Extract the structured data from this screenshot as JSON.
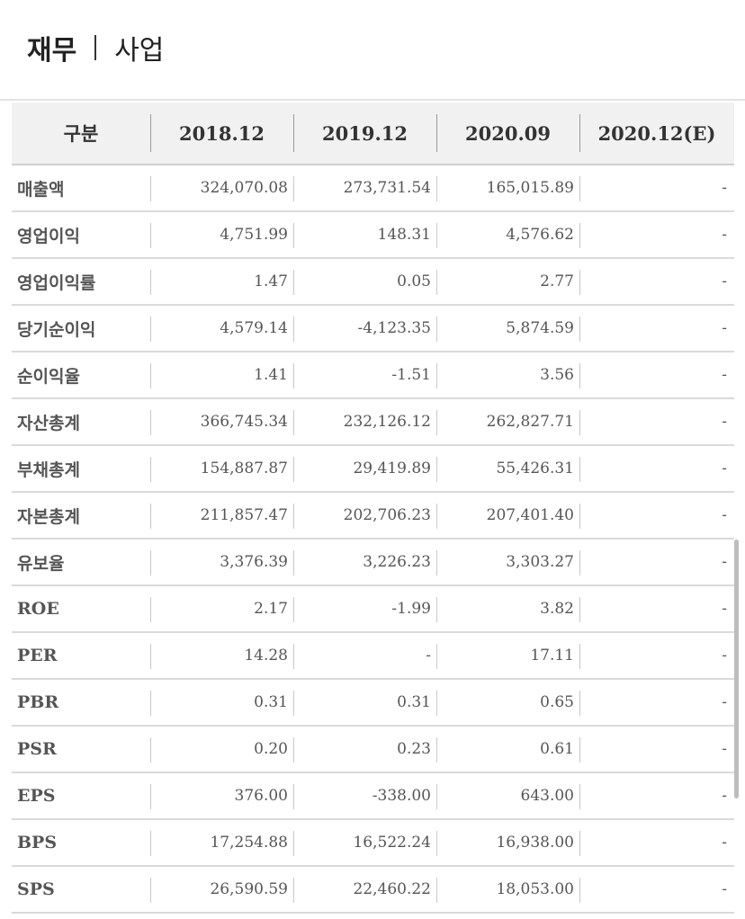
{
  "tabs": {
    "active_label": "재무",
    "inactive_label": "사업"
  },
  "table": {
    "headers": [
      "구분",
      "2018.12",
      "2019.12",
      "2020.09",
      "2020.12(E)"
    ],
    "rows": [
      {
        "label": "매출액",
        "values": [
          "324,070.08",
          "273,731.54",
          "165,015.89",
          "-"
        ]
      },
      {
        "label": "영업이익",
        "values": [
          "4,751.99",
          "148.31",
          "4,576.62",
          "-"
        ]
      },
      {
        "label": "영업이익률",
        "values": [
          "1.47",
          "0.05",
          "2.77",
          "-"
        ]
      },
      {
        "label": "당기순이익",
        "values": [
          "4,579.14",
          "-4,123.35",
          "5,874.59",
          "-"
        ]
      },
      {
        "label": "순이익율",
        "values": [
          "1.41",
          "-1.51",
          "3.56",
          "-"
        ]
      },
      {
        "label": "자산총계",
        "values": [
          "366,745.34",
          "232,126.12",
          "262,827.71",
          "-"
        ]
      },
      {
        "label": "부채총계",
        "values": [
          "154,887.87",
          "29,419.89",
          "55,426.31",
          "-"
        ]
      },
      {
        "label": "자본총계",
        "values": [
          "211,857.47",
          "202,706.23",
          "207,401.40",
          "-"
        ]
      },
      {
        "label": "유보율",
        "values": [
          "3,376.39",
          "3,226.23",
          "3,303.27",
          "-"
        ]
      },
      {
        "label": "ROE",
        "values": [
          "2.17",
          "-1.99",
          "3.82",
          "-"
        ]
      },
      {
        "label": "PER",
        "values": [
          "14.28",
          "-",
          "17.11",
          "-"
        ]
      },
      {
        "label": "PBR",
        "values": [
          "0.31",
          "0.31",
          "0.65",
          "-"
        ]
      },
      {
        "label": "PSR",
        "values": [
          "0.20",
          "0.23",
          "0.61",
          "-"
        ]
      },
      {
        "label": "EPS",
        "values": [
          "376.00",
          "-338.00",
          "643.00",
          "-"
        ]
      },
      {
        "label": "BPS",
        "values": [
          "17,254.88",
          "16,522.24",
          "16,938.00",
          "-"
        ]
      },
      {
        "label": "SPS",
        "values": [
          "26,590.59",
          "22,460.22",
          "18,053.00",
          "-"
        ]
      }
    ]
  }
}
